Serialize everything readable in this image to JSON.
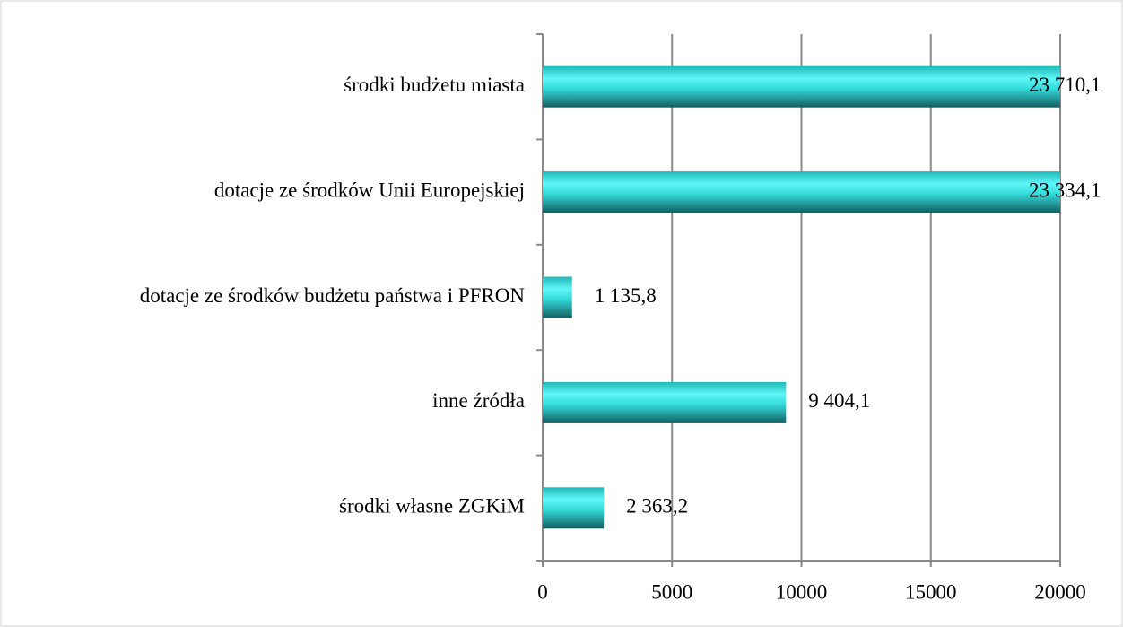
{
  "chart_data": {
    "type": "bar",
    "orientation": "horizontal",
    "categories": [
      "środki budżetu miasta",
      "dotacje ze środków Unii Europejskiej",
      "dotacje ze środków budżetu państwa i PFRON",
      "inne źródła",
      "środki własne ZGKiM"
    ],
    "values": [
      23710.1,
      23334.1,
      1135.8,
      9404.1,
      2363.2
    ],
    "value_labels": [
      "23 710,1",
      "23 334,1",
      "1 135,8",
      "9 404,1",
      "2 363,2"
    ],
    "color": "#2fd6d6",
    "xlim": [
      0,
      20000
    ],
    "xticks": [
      0,
      5000,
      10000,
      15000,
      20000
    ],
    "grid": true
  }
}
